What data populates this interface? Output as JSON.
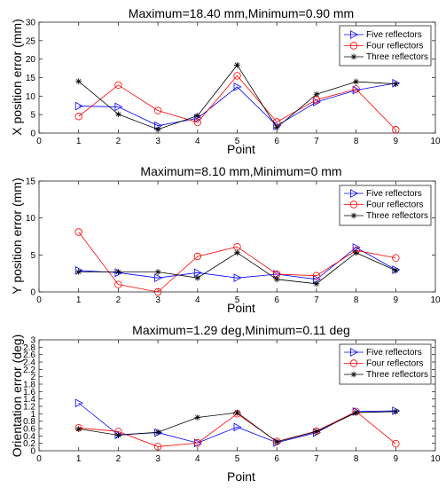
{
  "chart_data": [
    {
      "type": "line",
      "title": "Maximum=18.40 mm,Minimum=0.90 mm",
      "xlabel": "Point",
      "ylabel": "X position error (mm)",
      "xlim": [
        0,
        10
      ],
      "ylim": [
        0,
        30
      ],
      "xticks": [
        0,
        1,
        2,
        3,
        4,
        5,
        6,
        7,
        8,
        9,
        10
      ],
      "yticks": [
        0,
        5,
        10,
        15,
        20,
        25,
        30
      ],
      "x": [
        1,
        2,
        3,
        4,
        5,
        6,
        7,
        8,
        9
      ],
      "legend_position": "top-right",
      "series": [
        {
          "name": "Five reflectors",
          "color": "#0000ff",
          "marker": "triangle-right",
          "values": [
            7.3,
            7.1,
            2.0,
            4.0,
            12.5,
            2.0,
            8.4,
            11.6,
            13.5
          ]
        },
        {
          "name": "Four reflectors",
          "color": "#ff0000",
          "marker": "circle",
          "values": [
            4.5,
            13.0,
            6.1,
            2.9,
            15.5,
            3.0,
            9.0,
            11.9,
            0.9
          ]
        },
        {
          "name": "Three reflectors",
          "color": "#000000",
          "marker": "asterisk",
          "values": [
            14.0,
            5.1,
            1.0,
            4.7,
            18.4,
            1.5,
            10.5,
            13.9,
            13.3
          ]
        }
      ]
    },
    {
      "type": "line",
      "title": "Maximum=8.10 mm,Minimum=0 mm",
      "xlabel": "Point",
      "ylabel": "Y position error (mm)",
      "xlim": [
        0,
        10
      ],
      "ylim": [
        0,
        15
      ],
      "xticks": [
        0,
        1,
        2,
        3,
        4,
        5,
        6,
        7,
        8,
        9,
        10
      ],
      "yticks": [
        0,
        5,
        10,
        15
      ],
      "x": [
        1,
        2,
        3,
        4,
        5,
        6,
        7,
        8,
        9
      ],
      "legend_position": "top-right",
      "series": [
        {
          "name": "Five reflectors",
          "color": "#0000ff",
          "marker": "triangle-right",
          "values": [
            2.9,
            2.6,
            1.9,
            2.6,
            1.9,
            2.4,
            1.7,
            6.0,
            3.0
          ]
        },
        {
          "name": "Four reflectors",
          "color": "#ff0000",
          "marker": "circle",
          "values": [
            8.1,
            1.0,
            0.0,
            4.8,
            6.1,
            2.4,
            2.2,
            5.6,
            4.6
          ]
        },
        {
          "name": "Three reflectors",
          "color": "#000000",
          "marker": "asterisk",
          "values": [
            2.7,
            2.7,
            2.7,
            1.9,
            5.3,
            1.7,
            1.1,
            5.3,
            2.9
          ]
        }
      ]
    },
    {
      "type": "line",
      "title": "Maximum=1.29 deg,Minimum=0.11 deg",
      "xlabel": "Point",
      "ylabel": "Orientation error (deg)",
      "xlim": [
        0,
        10
      ],
      "ylim": [
        0,
        3
      ],
      "xticks": [
        0,
        1,
        2,
        3,
        4,
        5,
        6,
        7,
        8,
        9,
        10
      ],
      "yticks": [
        0,
        0.2,
        0.4,
        0.6,
        0.8,
        1,
        1.2,
        1.4,
        1.6,
        1.8,
        2,
        2.2,
        2.4,
        2.6,
        2.8,
        3
      ],
      "x": [
        1,
        2,
        3,
        4,
        5,
        6,
        7,
        8,
        9
      ],
      "legend_position": "top-right",
      "series": [
        {
          "name": "Five reflectors",
          "color": "#0000ff",
          "marker": "triangle-right",
          "values": [
            1.29,
            0.43,
            0.49,
            0.21,
            0.64,
            0.22,
            0.49,
            1.06,
            1.08
          ]
        },
        {
          "name": "Four reflectors",
          "color": "#ff0000",
          "marker": "circle",
          "values": [
            0.62,
            0.52,
            0.11,
            0.21,
            1.0,
            0.25,
            0.53,
            1.06,
            0.19
          ]
        },
        {
          "name": "Three reflectors",
          "color": "#000000",
          "marker": "asterisk",
          "values": [
            0.59,
            0.42,
            0.5,
            0.9,
            1.03,
            0.24,
            0.52,
            1.03,
            1.06
          ]
        }
      ]
    }
  ]
}
